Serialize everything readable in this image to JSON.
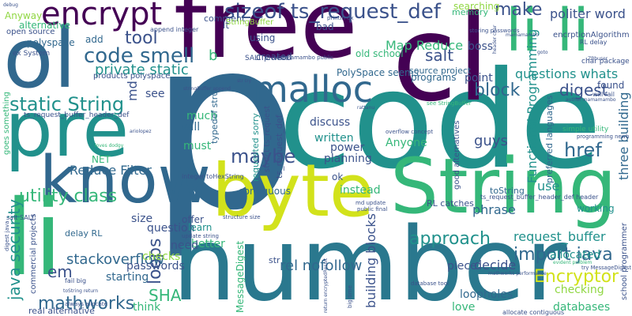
{
  "palette": {
    "purple": "#440154",
    "indigo": "#3b528b",
    "blue": "#31688e",
    "teal": "#21918c",
    "green": "#35b779",
    "lime": "#90d743",
    "yellow": "#d2e21b"
  },
  "words": [
    {
      "text": "code",
      "color": "#21918c"
    },
    {
      "text": "p",
      "color": "#31688e"
    },
    {
      "text": "number",
      "color": "#2a788e"
    },
    {
      "text": "free",
      "color": "#440154"
    },
    {
      "text": "String",
      "color": "#35b779"
    },
    {
      "text": "byte",
      "color": "#d2e21b"
    },
    {
      "text": "ol",
      "color": "#31688e"
    },
    {
      "text": "pre",
      "color": "#21918c"
    },
    {
      "text": "know",
      "color": "#31688e"
    },
    {
      "text": "li",
      "color": "#35b779"
    },
    {
      "text": "cl",
      "color": "#440154"
    },
    {
      "text": "li li",
      "color": "#35b779"
    },
    {
      "text": "encrypt",
      "color": "#440154"
    },
    {
      "text": "malloc",
      "color": "#31688e"
    },
    {
      "text": "sizeof ts_request_def",
      "color": "#3b528b"
    },
    {
      "text": "code smell",
      "color": "#31688e"
    },
    {
      "text": "static String",
      "color": "#21918c"
    },
    {
      "text": "tool",
      "color": "#3b528b"
    },
    {
      "text": "private static",
      "color": "#21918c"
    },
    {
      "text": "salt",
      "color": "#3b528b"
    },
    {
      "text": "block",
      "color": "#31688e"
    },
    {
      "text": "digest",
      "color": "#3b528b"
    },
    {
      "text": "questions whats",
      "color": "#21918c"
    },
    {
      "text": "make",
      "color": "#3b528b"
    },
    {
      "text": "politer word",
      "color": "#3b528b"
    },
    {
      "text": "href",
      "color": "#31688e"
    },
    {
      "text": "maybe",
      "color": "#3b528b"
    },
    {
      "text": "utility class",
      "color": "#35b779"
    },
    {
      "text": "java security",
      "color": "#21918c"
    },
    {
      "text": "approach",
      "color": "#21918c"
    },
    {
      "text": "import java",
      "color": "#31688e"
    },
    {
      "text": "Encryptor",
      "color": "#d2e21b"
    },
    {
      "text": "mathworks",
      "color": "#31688e"
    },
    {
      "text": "loops",
      "color": "#3b528b"
    },
    {
      "text": "em",
      "color": "#3b528b"
    },
    {
      "text": "SHA",
      "color": "#35b779"
    },
    {
      "text": "stackoverflow",
      "color": "#31688e"
    },
    {
      "text": "Functional Programming",
      "color": "#21918c"
    },
    {
      "text": "three building",
      "color": "#31688e"
    },
    {
      "text": "Reduce Filter",
      "color": "#31688e"
    },
    {
      "text": "rel nofollow",
      "color": "#31688e"
    },
    {
      "text": "building blocks",
      "color": "#3b528b"
    },
    {
      "text": "Map Reduce",
      "color": "#35b779"
    },
    {
      "text": "b",
      "color": "#35b779"
    },
    {
      "text": "md",
      "color": "#3b528b"
    },
    {
      "text": "use",
      "color": "#21918c"
    },
    {
      "text": "guys",
      "color": "#3b528b"
    },
    {
      "text": "Anyone",
      "color": "#35b779"
    },
    {
      "text": "power",
      "color": "#3b528b"
    },
    {
      "text": "planning",
      "color": "#3b528b"
    },
    {
      "text": "discuss",
      "color": "#3b528b"
    },
    {
      "text": "written",
      "color": "#21918c"
    },
    {
      "text": "instead",
      "color": "#35b779"
    },
    {
      "text": "phrase",
      "color": "#31688e"
    },
    {
      "text": "request_buffer",
      "color": "#21918c"
    },
    {
      "text": "allocated",
      "color": "#21918c"
    },
    {
      "text": "checking",
      "color": "#90d743"
    },
    {
      "text": "decide",
      "color": "#3b528b"
    },
    {
      "text": "piece",
      "color": "#3b528b"
    },
    {
      "text": "loopholes",
      "color": "#31688e"
    },
    {
      "text": "love",
      "color": "#35b779"
    },
    {
      "text": "databases",
      "color": "#35b779"
    },
    {
      "text": "MessageDigest",
      "color": "#35b779"
    },
    {
      "text": "question",
      "color": "#3b528b"
    },
    {
      "text": "passwords",
      "color": "#3b528b"
    },
    {
      "text": "checks",
      "color": "#90d743"
    },
    {
      "text": "starting",
      "color": "#31688e"
    },
    {
      "text": "think",
      "color": "#35b779"
    },
    {
      "text": "better",
      "color": "#35b779"
    },
    {
      "text": "need",
      "color": "#3b528b"
    },
    {
      "text": "learn",
      "color": "#21918c"
    },
    {
      "text": "offer",
      "color": "#3b528b"
    },
    {
      "text": "size",
      "color": "#3b528b"
    },
    {
      "text": "must",
      "color": "#35b779"
    },
    {
      "text": "will",
      "color": "#31688e"
    },
    {
      "text": "much",
      "color": "#35b779"
    },
    {
      "text": "see",
      "color": "#3b528b"
    },
    {
      "text": "created",
      "color": "#3b528b"
    },
    {
      "text": "using",
      "color": "#3b528b"
    },
    {
      "text": "comment",
      "color": "#3b528b"
    },
    {
      "text": "add",
      "color": "#31688e"
    },
    {
      "text": "polyspace",
      "color": "#31688e"
    },
    {
      "text": "alternative",
      "color": "#35b779"
    },
    {
      "text": "Anyway",
      "color": "#90d743"
    },
    {
      "text": "open source",
      "color": "#3b528b"
    },
    {
      "text": "products polyspace",
      "color": "#3b528b"
    },
    {
      "text": "PolySpace seems",
      "color": "#31688e"
    },
    {
      "text": "source project",
      "color": "#31688e"
    },
    {
      "text": "programs",
      "color": "#31688e"
    },
    {
      "text": "point",
      "color": "#3b528b"
    },
    {
      "text": "old school",
      "color": "#35b779"
    },
    {
      "text": "boss",
      "color": "#3b528b"
    },
    {
      "text": "searching",
      "color": "#90d743"
    },
    {
      "text": "memory",
      "color": "#35b779"
    },
    {
      "text": "bad",
      "color": "#3b528b"
    },
    {
      "text": "lt",
      "color": "#3b528b"
    },
    {
      "text": "ok",
      "color": "#3b528b"
    },
    {
      "text": "RL catches",
      "color": "#3b528b"
    },
    {
      "text": "working",
      "color": "#21918c"
    },
    {
      "text": "found",
      "color": "#3b528b"
    },
    {
      "text": "typedef struct",
      "color": "#31688e"
    },
    {
      "text": "NET",
      "color": "#35b779"
    },
    {
      "text": "contiguous",
      "color": "#31688e"
    },
    {
      "text": "real alternative",
      "color": "#3b528b"
    },
    {
      "text": "commercial projects",
      "color": "#3b528b"
    },
    {
      "text": "delay RL",
      "color": "#31688e"
    },
    {
      "text": "toString",
      "color": "#31688e"
    },
    {
      "text": "str",
      "color": "#3b528b"
    },
    {
      "text": "school programmer",
      "color": "#3b528b"
    },
    {
      "text": "preferred languages",
      "color": "#31688e"
    },
    {
      "text": "requested sorry",
      "color": "#21918c"
    },
    {
      "text": "ts_request_def",
      "color": "#3b528b"
    },
    {
      "text": "struct ts_request",
      "color": "#3b528b"
    },
    {
      "text": "good alternatives",
      "color": "#3b528b"
    },
    {
      "text": "goes something",
      "color": "#35b779"
    },
    {
      "text": "encrptionAlgorithm",
      "color": "#3b528b"
    },
    {
      "text": "StringBuffer",
      "color": "#90d743"
    },
    {
      "text": "char package",
      "color": "#3b528b"
    },
    {
      "text": "ex System",
      "color": "#3b528b"
    },
    {
      "text": "SALT private",
      "color": "#3b528b"
    },
    {
      "text": "ts_request_buffer_header_def",
      "color": "#3b528b"
    },
    {
      "text": "ts_request_buffer_header_def header",
      "color": "#3b528b"
    },
    {
      "text": "will fail",
      "color": "#3b528b"
    },
    {
      "text": "RL delay",
      "color": "#3b528b"
    },
    {
      "text": "append integer",
      "color": "#3b528b"
    },
    {
      "text": "simple utility",
      "color": "#35b779"
    },
    {
      "text": "programming newb",
      "color": "#3b528b"
    },
    {
      "text": "integer toHexString",
      "color": "#3b528b"
    },
    {
      "text": "salt SALT",
      "color": "#3b528b"
    },
    {
      "text": "fail big",
      "color": "#3b528b"
    },
    {
      "text": "try MessageDigest",
      "color": "#3b528b"
    },
    {
      "text": "allocate contiguous",
      "color": "#3b528b"
    },
    {
      "text": "database tool",
      "color": "#3b528b"
    },
    {
      "text": "public final",
      "color": "#3b528b"
    },
    {
      "text": "md update",
      "color": "#3b528b"
    },
    {
      "text": "big time",
      "color": "#3b528b"
    },
    {
      "text": "return encryptedResult",
      "color": "#3b528b"
    },
    {
      "text": "always allocate",
      "color": "#3b528b"
    },
    {
      "text": "digest java",
      "color": "#3b528b"
    },
    {
      "text": "overflow concept",
      "color": "#3b528b"
    },
    {
      "text": "see StringBuffer",
      "color": "#35b779"
    },
    {
      "text": "update string",
      "color": "#3b528b"
    },
    {
      "text": "structure size",
      "color": "#3b528b"
    },
    {
      "text": "storing passwords",
      "color": "#3b528b"
    },
    {
      "text": "printIn ex",
      "color": "#3b528b"
    },
    {
      "text": "mamamambo public",
      "color": "#3b528b"
    },
    {
      "text": "mamamambo",
      "color": "#3b528b"
    },
    {
      "text": "author mamamambo",
      "color": "#3b528b"
    },
    {
      "text": "header char",
      "color": "#3b528b"
    },
    {
      "text": "ZBbuser",
      "color": "#3b528b"
    },
    {
      "text": "ariolopez",
      "color": "#3b528b"
    },
    {
      "text": "loves dodgy",
      "color": "#35b779"
    },
    {
      "text": "str try",
      "color": "#3b528b"
    },
    {
      "text": "debug",
      "color": "#3b528b"
    },
    {
      "text": "evident problem",
      "color": "#35b779"
    },
    {
      "text": "mathworks performance",
      "color": "#3b528b"
    },
    {
      "text": "stringBuffer append",
      "color": "#3b528b"
    },
    {
      "text": "rattanu",
      "color": "#3b528b"
    },
    {
      "text": "goto",
      "color": "#3b528b"
    },
    {
      "text": "toString return",
      "color": "#3b528b"
    }
  ]
}
